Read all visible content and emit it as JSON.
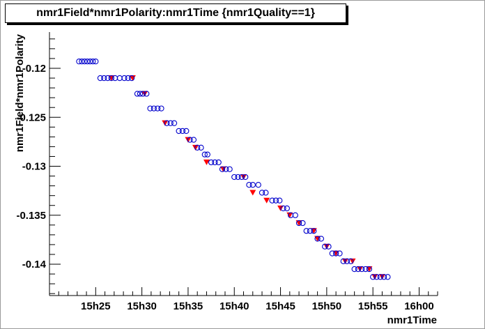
{
  "chart_data": {
    "type": "scatter",
    "title": "nmr1Field*nmr1Polarity:nmr1Time {nmr1Quality==1}",
    "xlabel": "nmr1Time",
    "ylabel": "nmr1Field*nmr1Polarity",
    "x_unit": "minutes after 15h00",
    "xlim": [
      20,
      62
    ],
    "ylim": [
      -0.1432,
      -0.1163
    ],
    "x_ticks": [
      {
        "value": 25,
        "label": "15h25"
      },
      {
        "value": 30,
        "label": "15h30"
      },
      {
        "value": 35,
        "label": "15h35"
      },
      {
        "value": 40,
        "label": "15h40"
      },
      {
        "value": 45,
        "label": "15h45"
      },
      {
        "value": 50,
        "label": "15h50"
      },
      {
        "value": 55,
        "label": "15h55"
      },
      {
        "value": 60,
        "label": "16h00"
      }
    ],
    "y_ticks": [
      {
        "value": -0.12,
        "label": "-0.12"
      },
      {
        "value": -0.125,
        "label": "-0.125"
      },
      {
        "value": -0.13,
        "label": "-0.13"
      },
      {
        "value": -0.135,
        "label": "-0.135"
      },
      {
        "value": -0.14,
        "label": "-0.14"
      }
    ],
    "colors": {
      "markers": "#0000cc",
      "triangles": "#ff0000",
      "axis": "#000000"
    },
    "series": [
      {
        "marker": "open-circle",
        "color": "#0000cc",
        "x": [
          23.2,
          23.5,
          23.8,
          24.1,
          24.4,
          24.7,
          25.0,
          25.5,
          25.9,
          26.3,
          26.7,
          27.1,
          27.6,
          28.1,
          28.5,
          28.9,
          29.5,
          29.8,
          30.1,
          30.5,
          30.9,
          31.3,
          31.7,
          32.1,
          32.7,
          33.1,
          33.5,
          34.0,
          34.4,
          34.8,
          35.2,
          35.6,
          36.0,
          36.4,
          36.8,
          37.1,
          37.5,
          37.9,
          38.3,
          38.7,
          39.1,
          39.5,
          40.0,
          40.4,
          40.8,
          41.2,
          41.6,
          42.0,
          42.6,
          43.0,
          43.4,
          44.1,
          44.5,
          44.9,
          45.3,
          45.7,
          46.1,
          46.6,
          47.0,
          47.4,
          47.8,
          48.2,
          48.6,
          49.0,
          49.4,
          49.8,
          50.2,
          50.6,
          51.0,
          51.4,
          51.8,
          52.2,
          52.6,
          53.0,
          53.4,
          53.8,
          54.2,
          54.6,
          55.0,
          55.4,
          55.8,
          56.2,
          56.6
        ],
        "y": [
          -0.1193,
          -0.1193,
          -0.1193,
          -0.1193,
          -0.1193,
          -0.1193,
          -0.1193,
          -0.121,
          -0.121,
          -0.121,
          -0.121,
          -0.121,
          -0.121,
          -0.121,
          -0.121,
          -0.121,
          -0.1226,
          -0.1226,
          -0.1226,
          -0.1226,
          -0.1241,
          -0.1241,
          -0.1241,
          -0.1241,
          -0.1256,
          -0.1256,
          -0.1256,
          -0.1264,
          -0.1264,
          -0.1264,
          -0.1273,
          -0.1273,
          -0.1281,
          -0.1281,
          -0.1288,
          -0.1288,
          -0.1296,
          -0.1296,
          -0.1296,
          -0.1303,
          -0.1303,
          -0.1303,
          -0.1311,
          -0.1311,
          -0.1311,
          -0.1311,
          -0.1319,
          -0.1319,
          -0.1319,
          -0.1327,
          -0.1327,
          -0.1335,
          -0.1335,
          -0.1335,
          -0.1343,
          -0.1343,
          -0.135,
          -0.135,
          -0.1358,
          -0.1358,
          -0.1366,
          -0.1366,
          -0.1366,
          -0.1374,
          -0.1374,
          -0.1382,
          -0.1382,
          -0.1389,
          -0.1389,
          -0.1389,
          -0.1397,
          -0.1397,
          -0.1397,
          -0.1405,
          -0.1405,
          -0.1405,
          -0.1405,
          -0.1405,
          -0.1413,
          -0.1413,
          -0.1413,
          -0.1413,
          -0.1413
        ]
      },
      {
        "marker": "filled-triangle-down",
        "color": "#ff0000",
        "x": [
          26.7,
          29.0,
          30.3,
          32.5,
          35.0,
          35.8,
          37.0,
          38.8,
          41.0,
          42.0,
          43.5,
          45.0,
          46.0,
          47.0,
          48.6,
          49.0,
          50.0,
          51.0,
          52.0,
          52.8,
          53.6,
          54.6,
          55.2,
          56.0
        ],
        "y": [
          -0.121,
          -0.121,
          -0.1226,
          -0.1256,
          -0.1273,
          -0.1281,
          -0.1296,
          -0.1303,
          -0.1311,
          -0.1327,
          -0.1335,
          -0.1343,
          -0.135,
          -0.1358,
          -0.1366,
          -0.1374,
          -0.1382,
          -0.1389,
          -0.1397,
          -0.1397,
          -0.1405,
          -0.1405,
          -0.1413,
          -0.1413
        ]
      }
    ]
  }
}
